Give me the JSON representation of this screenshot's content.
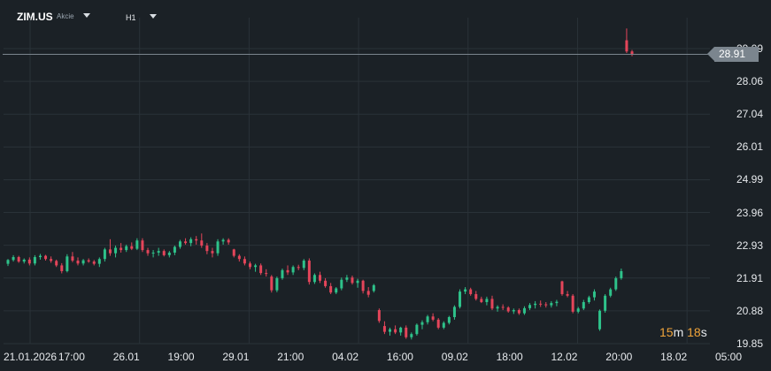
{
  "header": {
    "symbol": "ZIM.US",
    "asset_type": "Akcie",
    "timeframe": "H1"
  },
  "countdown": {
    "minutes": "15",
    "m_unit": "m",
    "seconds": "18",
    "s_unit": "s"
  },
  "colors": {
    "background": "#1b2126",
    "up": "#2ec28a",
    "down": "#e4455a",
    "grid": "#2a3238",
    "current_price_line": "#7b858e",
    "countdown": "#f0a43a"
  },
  "current_price": "28.91",
  "chart_data": {
    "type": "candlestick",
    "y_ticks": [
      "29.09",
      "28.06",
      "27.04",
      "26.01",
      "24.99",
      "23.96",
      "22.93",
      "21.91",
      "20.88",
      "19.85"
    ],
    "x_ticks": [
      "21.01.2026",
      "17:00",
      "26.01",
      "19:00",
      "29.01",
      "21:00",
      "04.02",
      "16:00",
      "09.02",
      "18:00",
      "12.02",
      "20:00",
      "18.02",
      "05:00"
    ],
    "ylim": [
      19.85,
      29.09
    ],
    "current_price": 28.91,
    "candles": [
      [
        22.35,
        22.5,
        22.28,
        22.47
      ],
      [
        22.47,
        22.62,
        22.42,
        22.56
      ],
      [
        22.56,
        22.6,
        22.38,
        22.42
      ],
      [
        22.42,
        22.52,
        22.36,
        22.48
      ],
      [
        22.48,
        22.55,
        22.3,
        22.36
      ],
      [
        22.36,
        22.62,
        22.3,
        22.56
      ],
      [
        22.56,
        22.66,
        22.48,
        22.6
      ],
      [
        22.6,
        22.63,
        22.45,
        22.5
      ],
      [
        22.5,
        22.58,
        22.38,
        22.44
      ],
      [
        22.44,
        22.48,
        22.25,
        22.3
      ],
      [
        22.3,
        22.37,
        22.05,
        22.12
      ],
      [
        22.12,
        22.65,
        22.08,
        22.58
      ],
      [
        22.58,
        22.72,
        22.4,
        22.45
      ],
      [
        22.45,
        22.55,
        22.3,
        22.36
      ],
      [
        22.36,
        22.5,
        22.3,
        22.46
      ],
      [
        22.46,
        22.52,
        22.38,
        22.42
      ],
      [
        22.42,
        22.47,
        22.3,
        22.35
      ],
      [
        22.35,
        22.55,
        22.25,
        22.5
      ],
      [
        22.5,
        22.85,
        22.42,
        22.8
      ],
      [
        22.8,
        23.12,
        22.6,
        22.68
      ],
      [
        22.68,
        22.92,
        22.55,
        22.85
      ],
      [
        22.85,
        23.0,
        22.7,
        22.78
      ],
      [
        22.78,
        22.95,
        22.72,
        22.9
      ],
      [
        22.9,
        23.02,
        22.78,
        22.82
      ],
      [
        22.82,
        23.15,
        22.78,
        23.08
      ],
      [
        23.08,
        23.15,
        22.72,
        22.78
      ],
      [
        22.78,
        22.85,
        22.6,
        22.68
      ],
      [
        22.68,
        22.78,
        22.55,
        22.7
      ],
      [
        22.7,
        22.85,
        22.6,
        22.75
      ],
      [
        22.75,
        22.8,
        22.58,
        22.62
      ],
      [
        22.62,
        22.75,
        22.55,
        22.7
      ],
      [
        22.7,
        22.92,
        22.62,
        22.88
      ],
      [
        22.88,
        23.1,
        22.82,
        23.05
      ],
      [
        23.05,
        23.15,
        22.95,
        23.0
      ],
      [
        23.0,
        23.18,
        22.9,
        23.12
      ],
      [
        23.12,
        23.22,
        22.95,
        23.08
      ],
      [
        23.08,
        23.3,
        22.85,
        22.92
      ],
      [
        22.92,
        23.0,
        22.65,
        22.75
      ],
      [
        22.75,
        22.85,
        22.55,
        22.68
      ],
      [
        22.68,
        23.12,
        22.6,
        23.05
      ],
      [
        23.05,
        23.15,
        22.95,
        23.1
      ],
      [
        23.1,
        23.15,
        22.95,
        23.02
      ],
      [
        22.8,
        22.82,
        22.55,
        22.6
      ],
      [
        22.6,
        22.65,
        22.42,
        22.5
      ],
      [
        22.5,
        22.58,
        22.3,
        22.36
      ],
      [
        22.36,
        22.42,
        22.18,
        22.25
      ],
      [
        22.25,
        22.35,
        22.1,
        22.3
      ],
      [
        22.3,
        22.36,
        22.0,
        22.06
      ],
      [
        22.06,
        22.18,
        21.95,
        22.05
      ],
      [
        21.95,
        22.0,
        21.45,
        21.52
      ],
      [
        21.52,
        21.95,
        21.46,
        21.9
      ],
      [
        21.9,
        22.2,
        21.85,
        22.15
      ],
      [
        22.15,
        22.3,
        22.0,
        22.08
      ],
      [
        22.08,
        22.3,
        22.0,
        22.25
      ],
      [
        22.25,
        22.32,
        22.15,
        22.22
      ],
      [
        22.22,
        22.5,
        22.15,
        22.45
      ],
      [
        22.45,
        22.52,
        21.7,
        21.78
      ],
      [
        21.78,
        22.05,
        21.72,
        22.0
      ],
      [
        22.0,
        22.1,
        21.75,
        21.82
      ],
      [
        21.82,
        21.9,
        21.6,
        21.65
      ],
      [
        21.65,
        21.75,
        21.4,
        21.45
      ],
      [
        21.45,
        21.62,
        21.4,
        21.58
      ],
      [
        21.58,
        21.92,
        21.52,
        21.85
      ],
      [
        21.85,
        22.0,
        21.78,
        21.92
      ],
      [
        21.92,
        21.98,
        21.7,
        21.75
      ],
      [
        21.75,
        21.88,
        21.6,
        21.82
      ],
      [
        21.82,
        21.85,
        21.42,
        21.5
      ],
      [
        21.5,
        21.62,
        21.3,
        21.38
      ],
      [
        21.5,
        21.72,
        21.45,
        21.68
      ],
      [
        20.9,
        20.95,
        20.5,
        20.56
      ],
      [
        20.4,
        20.55,
        20.15,
        20.22
      ],
      [
        20.22,
        20.35,
        20.1,
        20.3
      ],
      [
        20.3,
        20.42,
        20.15,
        20.2
      ],
      [
        20.2,
        20.38,
        20.1,
        20.35
      ],
      [
        20.35,
        20.42,
        20.0,
        20.05
      ],
      [
        20.05,
        20.2,
        19.98,
        20.15
      ],
      [
        20.15,
        20.48,
        20.1,
        20.44
      ],
      [
        20.44,
        20.58,
        20.3,
        20.52
      ],
      [
        20.52,
        20.75,
        20.45,
        20.7
      ],
      [
        20.7,
        20.8,
        20.55,
        20.6
      ],
      [
        20.6,
        20.65,
        20.3,
        20.35
      ],
      [
        20.35,
        20.55,
        20.3,
        20.5
      ],
      [
        20.5,
        20.72,
        20.45,
        20.68
      ],
      [
        20.68,
        21.05,
        20.6,
        21.0
      ],
      [
        21.0,
        21.55,
        20.95,
        21.48
      ],
      [
        21.48,
        21.62,
        21.4,
        21.55
      ],
      [
        21.55,
        21.6,
        21.35,
        21.4
      ],
      [
        21.4,
        21.5,
        21.2,
        21.25
      ],
      [
        21.25,
        21.32,
        21.12,
        21.15
      ],
      [
        21.15,
        21.32,
        21.05,
        21.25
      ],
      [
        21.25,
        21.35,
        20.9,
        20.95
      ],
      [
        20.95,
        21.05,
        20.85,
        21.0
      ],
      [
        21.0,
        21.08,
        20.9,
        20.98
      ],
      [
        20.98,
        21.02,
        20.82,
        20.86
      ],
      [
        20.86,
        20.95,
        20.78,
        20.9
      ],
      [
        20.9,
        20.95,
        20.75,
        20.8
      ],
      [
        20.8,
        21.02,
        20.75,
        20.96
      ],
      [
        20.96,
        21.12,
        20.9,
        21.06
      ],
      [
        21.06,
        21.18,
        20.95,
        21.1
      ],
      [
        21.1,
        21.2,
        21.0,
        21.08
      ],
      [
        21.08,
        21.15,
        20.98,
        21.05
      ],
      [
        21.05,
        21.18,
        20.98,
        21.12
      ],
      [
        21.12,
        21.22,
        21.02,
        21.16
      ],
      [
        21.8,
        21.82,
        21.35,
        21.4
      ],
      [
        21.4,
        21.5,
        21.3,
        21.35
      ],
      [
        21.35,
        21.4,
        20.8,
        20.85
      ],
      [
        20.85,
        21.0,
        20.8,
        20.95
      ],
      [
        20.95,
        21.22,
        20.9,
        21.15
      ],
      [
        21.15,
        21.35,
        21.1,
        21.3
      ],
      [
        21.3,
        21.55,
        21.2,
        21.48
      ],
      [
        20.3,
        20.92,
        20.25,
        20.88
      ],
      [
        20.88,
        21.4,
        20.82,
        21.35
      ],
      [
        21.35,
        21.6,
        21.3,
        21.55
      ],
      [
        21.55,
        21.95,
        21.5,
        21.9
      ],
      [
        21.9,
        22.2,
        21.85,
        22.12
      ],
      [
        29.35,
        29.72,
        28.95,
        29.0
      ],
      [
        29.0,
        29.05,
        28.85,
        28.91
      ]
    ]
  }
}
